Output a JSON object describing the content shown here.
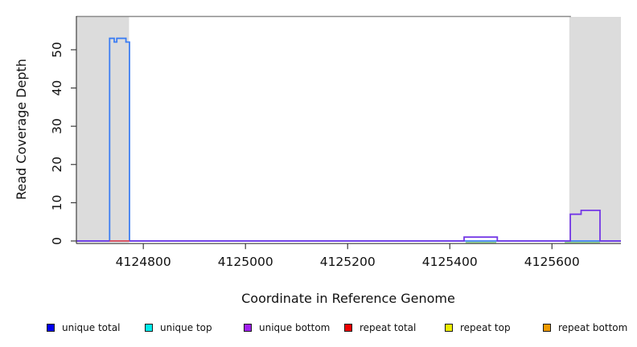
{
  "chart_data": {
    "type": "line",
    "title": "",
    "xlabel": "Coordinate in Reference Genome",
    "ylabel": "Read Coverage Depth",
    "xlim": [
      4124669,
      4125735
    ],
    "ylim": [
      0,
      58.6
    ],
    "x_ticks": [
      4124800,
      4125000,
      4125200,
      4125400,
      4125600
    ],
    "y_ticks": [
      0,
      10,
      20,
      30,
      40,
      50
    ],
    "grid": false,
    "frame_color": "#8a8a8a",
    "axis_color": "#3c3c3c",
    "shaded_regions": [
      {
        "name": "masked-region-left",
        "x0": 4124670,
        "x1": 4124772,
        "color": "#dcdcdc"
      },
      {
        "name": "masked-region-right",
        "x0": 4125634,
        "x1": 4125735,
        "color": "#dcdcdc"
      }
    ],
    "series": [
      {
        "name": "unique total",
        "color": "#3e7ef2",
        "width": 1.8,
        "points": [
          [
            4124669,
            0
          ],
          [
            4124734,
            0
          ],
          [
            4124734,
            53
          ],
          [
            4124743,
            53
          ],
          [
            4124743,
            52
          ],
          [
            4124748,
            52
          ],
          [
            4124748,
            53
          ],
          [
            4124766,
            53
          ],
          [
            4124766,
            52
          ],
          [
            4124773,
            52
          ],
          [
            4124773,
            0
          ],
          [
            4125735,
            0
          ]
        ]
      },
      {
        "name": "unique bottom",
        "color": "#7438e6",
        "width": 1.8,
        "points": [
          [
            4124669,
            0
          ],
          [
            4125428,
            0
          ],
          [
            4125428,
            1
          ],
          [
            4125493,
            1
          ],
          [
            4125493,
            0
          ],
          [
            4125636,
            0
          ],
          [
            4125636,
            7
          ],
          [
            4125657,
            7
          ],
          [
            4125657,
            8
          ],
          [
            4125694,
            8
          ],
          [
            4125694,
            0
          ],
          [
            4125735,
            0
          ]
        ]
      },
      {
        "name": "repeat total",
        "color": "#e25555",
        "width": 1.8,
        "points": [
          [
            4124734,
            0
          ],
          [
            4124773,
            0
          ]
        ]
      }
    ],
    "baseline_annotations": [
      {
        "name": "green-segment-1",
        "color": "#8fd48f",
        "width": 1.5,
        "x0": 4125431,
        "x1": 4125491,
        "y": 0
      },
      {
        "name": "green-segment-2",
        "color": "#8fd48f",
        "width": 1.5,
        "x0": 4125625,
        "x1": 4125694,
        "y": 0
      }
    ],
    "legend": {
      "position": "bottom",
      "entries": [
        {
          "label": "unique total",
          "color": "#0000ee"
        },
        {
          "label": "unique top",
          "color": "#00eeee"
        },
        {
          "label": "unique bottom",
          "color": "#a020f0"
        },
        {
          "label": "repeat total",
          "color": "#ee0000"
        },
        {
          "label": "repeat top",
          "color": "#eeee00"
        },
        {
          "label": "repeat bottom",
          "color": "#ee9a00"
        }
      ]
    }
  }
}
